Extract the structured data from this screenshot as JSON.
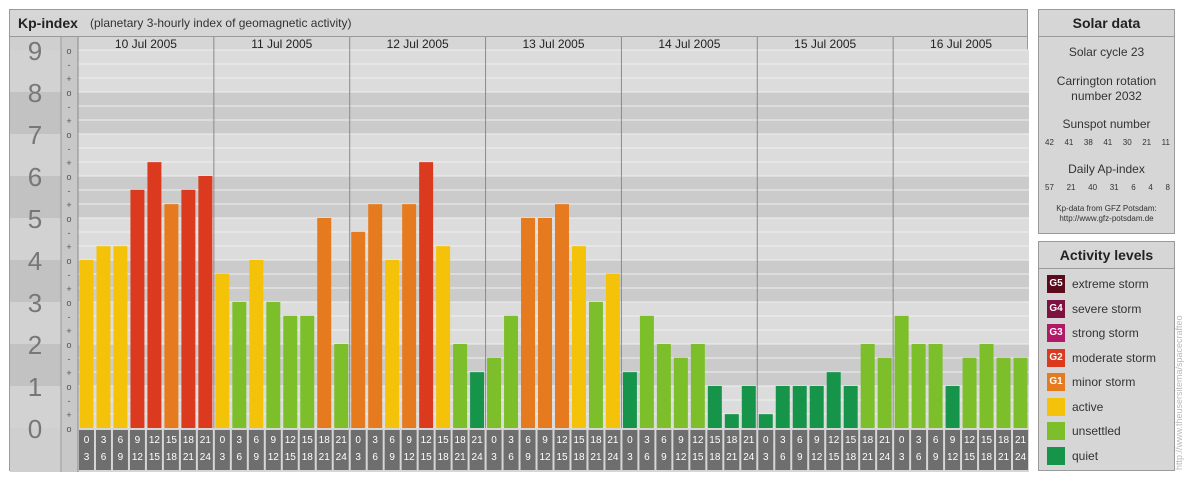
{
  "header": {
    "title": "Kp-index",
    "subtitle": "(planetary 3-hourly index of geomagnetic activity)"
  },
  "chart_data": {
    "type": "bar",
    "ylim": [
      0,
      9
    ],
    "y_ticks": [
      "0",
      "1",
      "2",
      "3",
      "4",
      "5",
      "6",
      "7",
      "8",
      "9"
    ],
    "sub_ticks": [
      "o",
      "+",
      "-"
    ],
    "days": [
      "10 Jul 2005",
      "11 Jul 2005",
      "12 Jul 2005",
      "13 Jul 2005",
      "14 Jul 2005",
      "15 Jul 2005",
      "16 Jul 2005"
    ],
    "interval_top": [
      "0",
      "3",
      "6",
      "9",
      "12",
      "15",
      "18",
      "21"
    ],
    "interval_bottom": [
      "3",
      "6",
      "9",
      "12",
      "15",
      "18",
      "21",
      "24"
    ],
    "values": [
      4.0,
      4.33,
      4.33,
      5.67,
      6.33,
      5.33,
      5.67,
      6.0,
      3.67,
      3.0,
      4.0,
      3.0,
      2.67,
      2.67,
      5.0,
      2.0,
      4.67,
      5.33,
      4.0,
      5.33,
      6.33,
      4.33,
      2.0,
      1.33,
      1.67,
      2.67,
      5.0,
      5.0,
      5.33,
      4.33,
      3.0,
      3.67,
      1.33,
      2.67,
      2.0,
      1.67,
      2.0,
      1.0,
      0.33,
      1.0,
      0.33,
      1.0,
      1.0,
      1.0,
      1.33,
      1.0,
      2.0,
      1.67,
      2.67,
      2.0,
      2.0,
      1.0,
      1.67,
      2.0,
      1.67,
      1.67
    ],
    "colors": {
      "quiet": "#16944a",
      "unsettled": "#7cbf2a",
      "active": "#f5c20a",
      "minor": "#e57a1e",
      "moderate": "#dc3a1e"
    }
  },
  "solar": {
    "title": "Solar data",
    "cycle": "Solar cycle 23",
    "carrington_1": "Carrington rotation",
    "carrington_2": "number 2032",
    "sunspot_label": "Sunspot number",
    "sunspot_values": [
      "42",
      "41",
      "38",
      "41",
      "30",
      "21",
      "11"
    ],
    "ap_label": "Daily Ap-index",
    "ap_values": [
      "57",
      "21",
      "40",
      "31",
      "6",
      "4",
      "8"
    ],
    "source_1": "Kp-data from GFZ Potsdam:",
    "source_2": "http://www.gfz-potsdam.de"
  },
  "legend": {
    "title": "Activity levels",
    "items": [
      {
        "code": "G5",
        "label": "extreme storm",
        "color": "#5a0b1c"
      },
      {
        "code": "G4",
        "label": "severe storm",
        "color": "#7d1140"
      },
      {
        "code": "G3",
        "label": "strong storm",
        "color": "#b01868"
      },
      {
        "code": "G2",
        "label": "moderate storm",
        "color": "#dc3a1e"
      },
      {
        "code": "G1",
        "label": "minor storm",
        "color": "#e57a1e"
      },
      {
        "code": "",
        "label": "active",
        "color": "#f5c20a"
      },
      {
        "code": "",
        "label": "unsettled",
        "color": "#7cbf2a"
      },
      {
        "code": "",
        "label": "quiet",
        "color": "#16944a"
      }
    ]
  },
  "watermark": "http://www.theusersitema/spacecrafteo"
}
